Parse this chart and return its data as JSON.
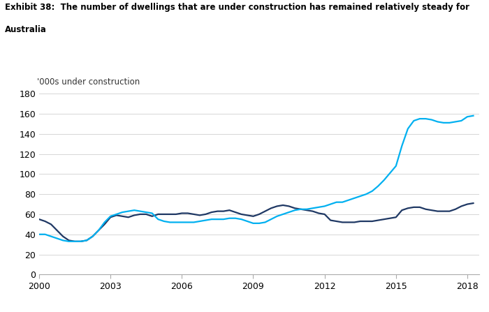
{
  "title_line1": "Exhibit 38:  The number of dwellings that are under construction has remained relatively steady for",
  "title_line2": "Australia",
  "ylabel": "'000s under construction",
  "ylim": [
    0,
    180
  ],
  "yticks": [
    0,
    20,
    40,
    60,
    80,
    100,
    120,
    140,
    160,
    180
  ],
  "xlim": [
    2000.0,
    2018.5
  ],
  "xticks": [
    2000,
    2003,
    2006,
    2009,
    2012,
    2015,
    2018
  ],
  "houses_color": "#1f3864",
  "apartments_color": "#00b0f0",
  "background_color": "#ffffff",
  "houses_x": [
    2000.0,
    2000.25,
    2000.5,
    2000.75,
    2001.0,
    2001.25,
    2001.5,
    2001.75,
    2002.0,
    2002.25,
    2002.5,
    2002.75,
    2003.0,
    2003.25,
    2003.5,
    2003.75,
    2004.0,
    2004.25,
    2004.5,
    2004.75,
    2005.0,
    2005.25,
    2005.5,
    2005.75,
    2006.0,
    2006.25,
    2006.5,
    2006.75,
    2007.0,
    2007.25,
    2007.5,
    2007.75,
    2008.0,
    2008.25,
    2008.5,
    2008.75,
    2009.0,
    2009.25,
    2009.5,
    2009.75,
    2010.0,
    2010.25,
    2010.5,
    2010.75,
    2011.0,
    2011.25,
    2011.5,
    2011.75,
    2012.0,
    2012.25,
    2012.5,
    2012.75,
    2013.0,
    2013.25,
    2013.5,
    2013.75,
    2014.0,
    2014.25,
    2014.5,
    2014.75,
    2015.0,
    2015.25,
    2015.5,
    2015.75,
    2016.0,
    2016.25,
    2016.5,
    2016.75,
    2017.0,
    2017.25,
    2017.5,
    2017.75,
    2018.0,
    2018.25
  ],
  "houses_y": [
    55,
    53,
    50,
    44,
    38,
    34,
    33,
    33,
    34,
    38,
    44,
    50,
    57,
    59,
    58,
    57,
    59,
    60,
    60,
    58,
    60,
    60,
    60,
    60,
    61,
    61,
    60,
    59,
    60,
    62,
    63,
    63,
    64,
    62,
    60,
    59,
    58,
    60,
    63,
    66,
    68,
    69,
    68,
    66,
    65,
    64,
    63,
    61,
    60,
    54,
    53,
    52,
    52,
    52,
    53,
    53,
    53,
    54,
    55,
    56,
    57,
    64,
    66,
    67,
    67,
    65,
    64,
    63,
    63,
    63,
    65,
    68,
    70,
    71
  ],
  "apartments_x": [
    2000.0,
    2000.25,
    2000.5,
    2000.75,
    2001.0,
    2001.25,
    2001.5,
    2001.75,
    2002.0,
    2002.25,
    2002.5,
    2002.75,
    2003.0,
    2003.25,
    2003.5,
    2003.75,
    2004.0,
    2004.25,
    2004.5,
    2004.75,
    2005.0,
    2005.25,
    2005.5,
    2005.75,
    2006.0,
    2006.25,
    2006.5,
    2006.75,
    2007.0,
    2007.25,
    2007.5,
    2007.75,
    2008.0,
    2008.25,
    2008.5,
    2008.75,
    2009.0,
    2009.25,
    2009.5,
    2009.75,
    2010.0,
    2010.25,
    2010.5,
    2010.75,
    2011.0,
    2011.25,
    2011.5,
    2011.75,
    2012.0,
    2012.25,
    2012.5,
    2012.75,
    2013.0,
    2013.25,
    2013.5,
    2013.75,
    2014.0,
    2014.25,
    2014.5,
    2014.75,
    2015.0,
    2015.25,
    2015.5,
    2015.75,
    2016.0,
    2016.25,
    2016.5,
    2016.75,
    2017.0,
    2017.25,
    2017.5,
    2017.75,
    2018.0,
    2018.25
  ],
  "apartments_y": [
    40,
    40,
    38,
    36,
    34,
    33,
    33,
    33,
    34,
    38,
    44,
    52,
    58,
    60,
    62,
    63,
    64,
    63,
    62,
    61,
    55,
    53,
    52,
    52,
    52,
    52,
    52,
    53,
    54,
    55,
    55,
    55,
    56,
    56,
    55,
    53,
    51,
    51,
    52,
    55,
    58,
    60,
    62,
    64,
    65,
    65,
    66,
    67,
    68,
    70,
    72,
    72,
    74,
    76,
    78,
    80,
    83,
    88,
    94,
    101,
    108,
    128,
    145,
    153,
    155,
    155,
    154,
    152,
    151,
    151,
    152,
    153,
    157,
    158
  ],
  "title_fontsize": 8.5,
  "tick_fontsize": 9,
  "ylabel_fontsize": 8.5
}
